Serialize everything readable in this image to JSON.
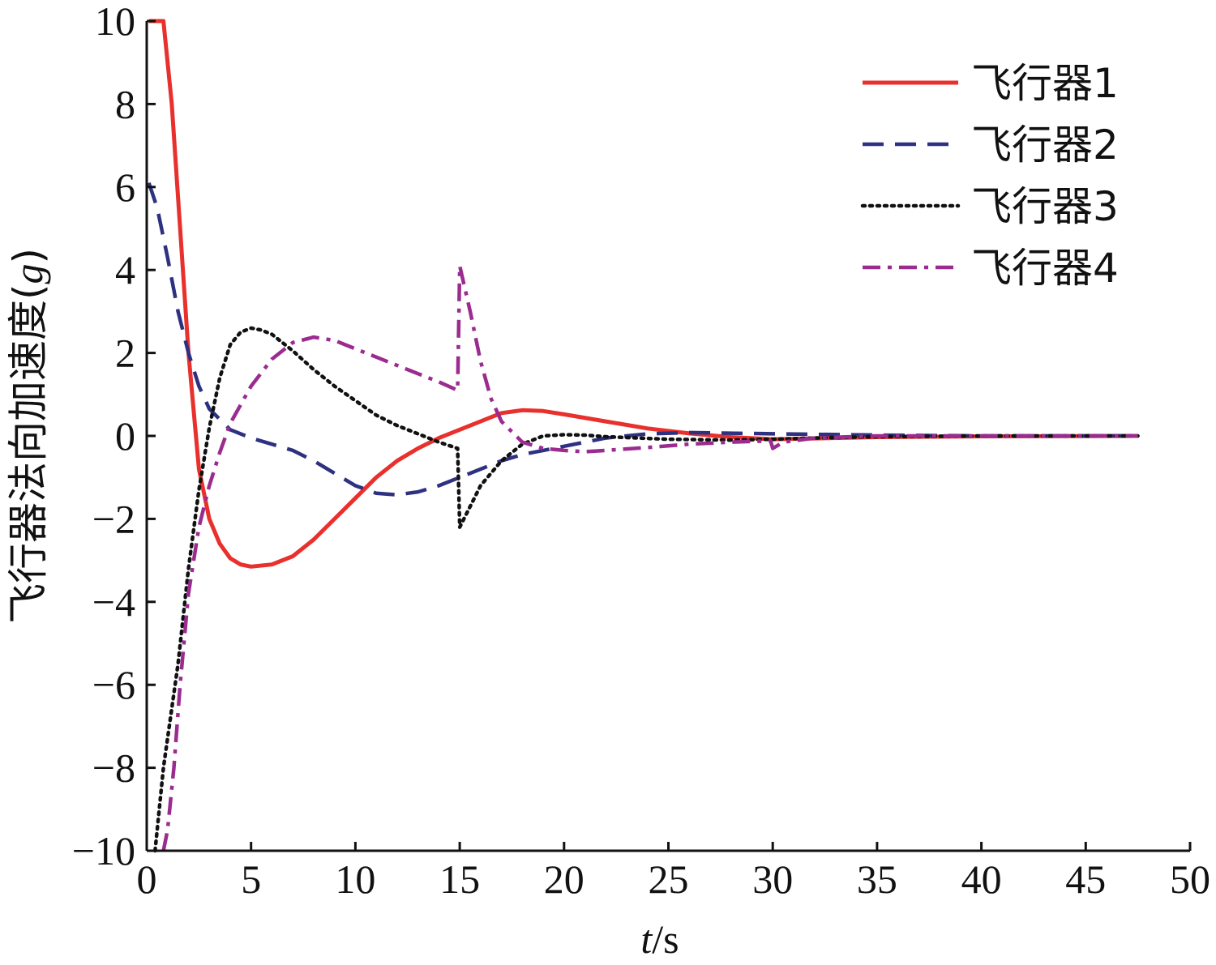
{
  "chart_data": {
    "type": "line",
    "title": "",
    "xlabel": {
      "var": "t",
      "unit": "/s"
    },
    "ylabel": {
      "text": "飞行器法向加速度(",
      "var": "g",
      "close": ")"
    },
    "xlim": [
      0,
      50
    ],
    "ylim": [
      -10,
      10
    ],
    "xticks": [
      0,
      5,
      10,
      15,
      20,
      25,
      30,
      35,
      40,
      45,
      50
    ],
    "yticks": [
      -10,
      -8,
      -6,
      -4,
      -2,
      0,
      2,
      4,
      6,
      8,
      10
    ],
    "grid": false,
    "legend_position": "top-right",
    "series": [
      {
        "name": "飞行器1",
        "color": "#e8302c",
        "style": "solid",
        "points": [
          [
            0.1,
            10
          ],
          [
            0.8,
            10
          ],
          [
            1.2,
            8
          ],
          [
            1.6,
            5
          ],
          [
            2.0,
            2
          ],
          [
            2.5,
            -0.8
          ],
          [
            3.0,
            -2.0
          ],
          [
            3.5,
            -2.6
          ],
          [
            4.0,
            -2.95
          ],
          [
            4.5,
            -3.1
          ],
          [
            5.0,
            -3.15
          ],
          [
            6.0,
            -3.1
          ],
          [
            7.0,
            -2.9
          ],
          [
            8.0,
            -2.5
          ],
          [
            9.0,
            -2.0
          ],
          [
            10.0,
            -1.5
          ],
          [
            11.0,
            -1.0
          ],
          [
            12.0,
            -0.6
          ],
          [
            13.0,
            -0.3
          ],
          [
            14.0,
            -0.05
          ],
          [
            15.0,
            0.15
          ],
          [
            16.0,
            0.35
          ],
          [
            17.0,
            0.55
          ],
          [
            18.0,
            0.62
          ],
          [
            19.0,
            0.6
          ],
          [
            20.0,
            0.52
          ],
          [
            22.0,
            0.35
          ],
          [
            24.0,
            0.18
          ],
          [
            26.0,
            0.06
          ],
          [
            28.0,
            -0.03
          ],
          [
            30.0,
            -0.08
          ],
          [
            32.0,
            -0.06
          ],
          [
            35.0,
            -0.03
          ],
          [
            40.0,
            -0.01
          ],
          [
            47.5,
            0
          ]
        ]
      },
      {
        "name": "飞行器2",
        "color": "#2e3180",
        "style": "dashed",
        "points": [
          [
            0.1,
            6.1
          ],
          [
            0.5,
            5.5
          ],
          [
            1.0,
            4.3
          ],
          [
            1.5,
            3.0
          ],
          [
            2.0,
            2.0
          ],
          [
            2.5,
            1.2
          ],
          [
            3.0,
            0.65
          ],
          [
            4.0,
            0.15
          ],
          [
            5.0,
            -0.05
          ],
          [
            6.0,
            -0.2
          ],
          [
            7.0,
            -0.35
          ],
          [
            8.0,
            -0.6
          ],
          [
            9.0,
            -0.9
          ],
          [
            10.0,
            -1.2
          ],
          [
            11.0,
            -1.38
          ],
          [
            12.0,
            -1.42
          ],
          [
            13.0,
            -1.35
          ],
          [
            14.0,
            -1.2
          ],
          [
            15.0,
            -1.0
          ],
          [
            16.0,
            -0.8
          ],
          [
            17.0,
            -0.6
          ],
          [
            18.0,
            -0.45
          ],
          [
            19.0,
            -0.35
          ],
          [
            20.0,
            -0.25
          ],
          [
            22.0,
            -0.05
          ],
          [
            24.0,
            0.05
          ],
          [
            26.0,
            0.08
          ],
          [
            30.0,
            0.05
          ],
          [
            35.0,
            0.02
          ],
          [
            40.0,
            0
          ],
          [
            47.5,
            0
          ]
        ]
      },
      {
        "name": "飞行器3",
        "color": "#111111",
        "style": "dotted",
        "points": [
          [
            0.4,
            -10
          ],
          [
            0.8,
            -8
          ],
          [
            1.5,
            -5.5
          ],
          [
            2.0,
            -3.2
          ],
          [
            2.5,
            -1.3
          ],
          [
            3.0,
            0.2
          ],
          [
            3.5,
            1.4
          ],
          [
            4.0,
            2.2
          ],
          [
            4.5,
            2.5
          ],
          [
            5.0,
            2.6
          ],
          [
            5.5,
            2.55
          ],
          [
            6.0,
            2.45
          ],
          [
            7.0,
            2.05
          ],
          [
            8.0,
            1.6
          ],
          [
            9.0,
            1.2
          ],
          [
            10.0,
            0.85
          ],
          [
            11.0,
            0.5
          ],
          [
            12.0,
            0.25
          ],
          [
            13.0,
            0.05
          ],
          [
            14.0,
            -0.15
          ],
          [
            14.9,
            -0.3
          ],
          [
            15.0,
            -2.2
          ],
          [
            15.5,
            -1.7
          ],
          [
            16.0,
            -1.2
          ],
          [
            17.0,
            -0.6
          ],
          [
            18.0,
            -0.2
          ],
          [
            19.0,
            0
          ],
          [
            20.0,
            0.03
          ],
          [
            21.0,
            0.02
          ],
          [
            22.0,
            -0.02
          ],
          [
            25.0,
            -0.08
          ],
          [
            28.0,
            -0.1
          ],
          [
            30.0,
            -0.08
          ],
          [
            32.0,
            -0.05
          ],
          [
            35.0,
            -0.02
          ],
          [
            40.0,
            0
          ],
          [
            47.5,
            0
          ]
        ]
      },
      {
        "name": "飞行器4",
        "color": "#9b2c8f",
        "style": "dashdot",
        "points": [
          [
            0.8,
            -10
          ],
          [
            1.0,
            -9.5
          ],
          [
            1.3,
            -8
          ],
          [
            1.6,
            -6
          ],
          [
            2.0,
            -3.8
          ],
          [
            2.5,
            -2.2
          ],
          [
            3.0,
            -1.2
          ],
          [
            3.5,
            -0.4
          ],
          [
            4.0,
            0.3
          ],
          [
            5.0,
            1.2
          ],
          [
            6.0,
            1.85
          ],
          [
            7.0,
            2.25
          ],
          [
            8.0,
            2.38
          ],
          [
            9.0,
            2.3
          ],
          [
            10.0,
            2.1
          ],
          [
            11.0,
            1.9
          ],
          [
            12.0,
            1.7
          ],
          [
            13.0,
            1.5
          ],
          [
            14.0,
            1.3
          ],
          [
            14.9,
            1.1
          ],
          [
            15.0,
            4.1
          ],
          [
            15.5,
            3.0
          ],
          [
            16.0,
            1.8
          ],
          [
            16.5,
            0.9
          ],
          [
            17.0,
            0.35
          ],
          [
            18.0,
            -0.15
          ],
          [
            19.0,
            -0.3
          ],
          [
            20.0,
            -0.35
          ],
          [
            21.0,
            -0.38
          ],
          [
            22.0,
            -0.35
          ],
          [
            24.0,
            -0.28
          ],
          [
            26.0,
            -0.2
          ],
          [
            28.0,
            -0.15
          ],
          [
            29.9,
            -0.12
          ],
          [
            30.0,
            -0.3
          ],
          [
            30.5,
            -0.15
          ],
          [
            32.0,
            -0.05
          ],
          [
            35.0,
            0
          ],
          [
            40.0,
            0
          ],
          [
            47.5,
            0
          ]
        ]
      }
    ]
  }
}
